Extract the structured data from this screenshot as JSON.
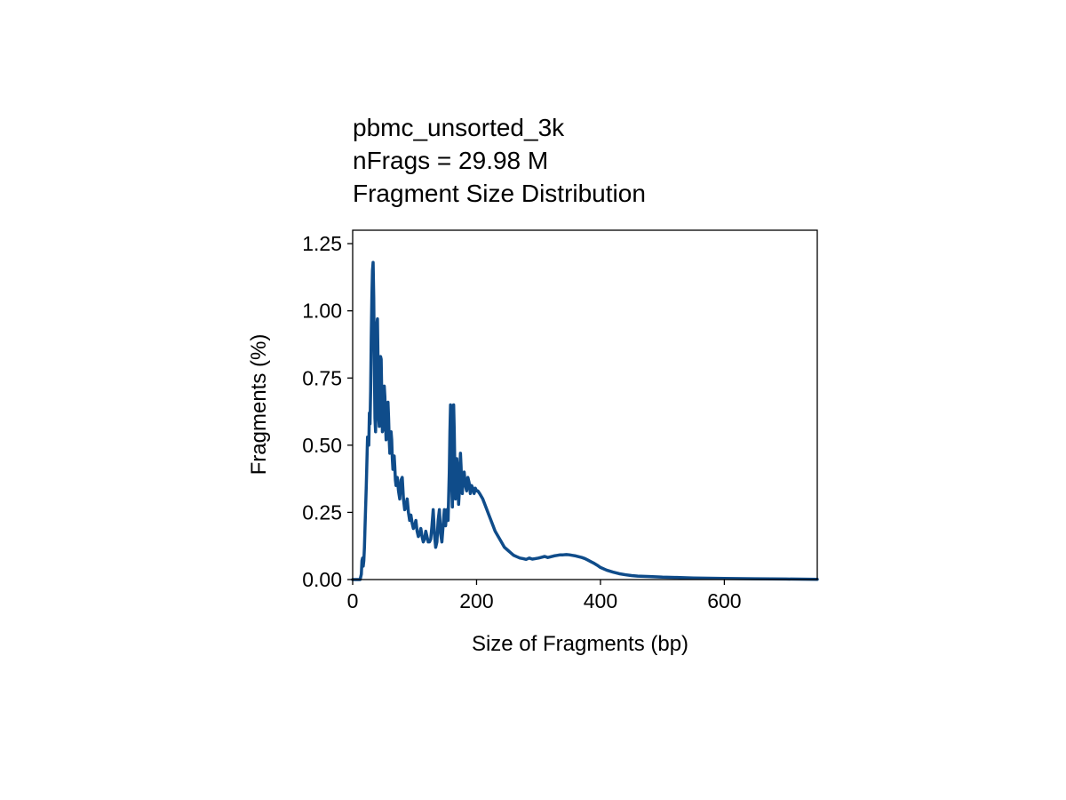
{
  "chart_data": {
    "type": "line",
    "title_lines": [
      "pbmc_unsorted_3k",
      "nFrags = 29.98 M",
      "Fragment Size Distribution"
    ],
    "xlabel": "Size of Fragments (bp)",
    "ylabel": "Fragments (%)",
    "xlim": [
      0,
      750
    ],
    "ylim": [
      0,
      1.3
    ],
    "xticks": [
      0,
      200,
      400,
      600
    ],
    "xtick_labels": [
      "0",
      "200",
      "400",
      "600"
    ],
    "yticks": [
      0,
      0.25,
      0.5,
      0.75,
      1.0,
      1.25
    ],
    "ytick_labels": [
      "0.00",
      "0.25",
      "0.50",
      "0.75",
      "1.00",
      "1.25"
    ],
    "grid": false,
    "legend": "none",
    "series": [
      {
        "color": "#0f4c8a",
        "x": [
          0,
          12,
          14,
          15,
          16,
          17,
          18,
          19,
          20,
          22,
          24,
          26,
          27,
          28,
          29,
          30,
          31,
          32,
          33,
          34,
          35,
          36,
          37,
          38,
          39,
          40,
          41,
          42,
          43,
          44,
          45,
          46,
          47,
          48,
          49,
          50,
          51,
          52,
          53,
          54,
          55,
          56,
          57,
          58,
          59,
          60,
          61,
          62,
          63,
          64,
          65,
          66,
          67,
          68,
          69,
          70,
          72,
          74,
          76,
          78,
          80,
          82,
          84,
          86,
          88,
          90,
          92,
          94,
          96,
          98,
          100,
          102,
          104,
          106,
          108,
          110,
          112,
          114,
          116,
          118,
          120,
          122,
          124,
          126,
          128,
          130,
          132,
          134,
          136,
          138,
          140,
          142,
          144,
          146,
          148,
          150,
          152,
          154,
          156,
          157,
          158,
          159,
          160,
          161,
          162,
          163,
          164,
          165,
          166,
          167,
          168,
          169,
          170,
          171,
          172,
          173,
          174,
          175,
          176,
          177,
          178,
          180,
          182,
          184,
          186,
          188,
          190,
          192,
          194,
          196,
          198,
          200,
          202,
          205,
          210,
          215,
          220,
          225,
          230,
          235,
          240,
          245,
          250,
          255,
          260,
          265,
          270,
          275,
          280,
          285,
          290,
          295,
          300,
          305,
          310,
          315,
          320,
          325,
          330,
          335,
          340,
          345,
          350,
          355,
          360,
          365,
          370,
          375,
          380,
          385,
          390,
          395,
          400,
          410,
          420,
          430,
          440,
          450,
          460,
          470,
          480,
          500,
          520,
          550,
          600,
          650,
          700,
          750
        ],
        "y": [
          0,
          0,
          0.02,
          0.07,
          0.08,
          0.05,
          0.07,
          0.12,
          0.2,
          0.35,
          0.53,
          0.5,
          0.62,
          0.58,
          0.7,
          0.9,
          1.05,
          1.15,
          1.18,
          1.05,
          0.8,
          0.6,
          0.55,
          0.78,
          0.95,
          0.97,
          0.8,
          0.6,
          0.57,
          0.68,
          0.83,
          0.82,
          0.68,
          0.55,
          0.56,
          0.65,
          0.72,
          0.68,
          0.58,
          0.52,
          0.55,
          0.63,
          0.66,
          0.6,
          0.52,
          0.47,
          0.5,
          0.55,
          0.52,
          0.45,
          0.41,
          0.43,
          0.46,
          0.42,
          0.37,
          0.35,
          0.38,
          0.33,
          0.3,
          0.37,
          0.38,
          0.3,
          0.26,
          0.27,
          0.3,
          0.25,
          0.22,
          0.24,
          0.21,
          0.19,
          0.2,
          0.22,
          0.18,
          0.16,
          0.17,
          0.19,
          0.16,
          0.14,
          0.15,
          0.18,
          0.16,
          0.14,
          0.14,
          0.15,
          0.2,
          0.26,
          0.17,
          0.12,
          0.14,
          0.22,
          0.26,
          0.17,
          0.14,
          0.2,
          0.26,
          0.2,
          0.26,
          0.22,
          0.4,
          0.55,
          0.65,
          0.5,
          0.35,
          0.27,
          0.45,
          0.65,
          0.55,
          0.4,
          0.3,
          0.32,
          0.45,
          0.42,
          0.35,
          0.28,
          0.32,
          0.4,
          0.47,
          0.42,
          0.35,
          0.32,
          0.38,
          0.4,
          0.35,
          0.33,
          0.38,
          0.36,
          0.32,
          0.35,
          0.34,
          0.32,
          0.34,
          0.33,
          0.33,
          0.32,
          0.3,
          0.27,
          0.24,
          0.21,
          0.18,
          0.16,
          0.14,
          0.12,
          0.11,
          0.1,
          0.09,
          0.085,
          0.08,
          0.078,
          0.075,
          0.08,
          0.076,
          0.078,
          0.08,
          0.083,
          0.086,
          0.082,
          0.085,
          0.088,
          0.09,
          0.092,
          0.092,
          0.093,
          0.092,
          0.09,
          0.088,
          0.085,
          0.082,
          0.078,
          0.072,
          0.066,
          0.06,
          0.053,
          0.045,
          0.035,
          0.028,
          0.022,
          0.018,
          0.015,
          0.013,
          0.012,
          0.011,
          0.009,
          0.008,
          0.006,
          0.004,
          0.003,
          0.002,
          0.001
        ]
      }
    ]
  }
}
